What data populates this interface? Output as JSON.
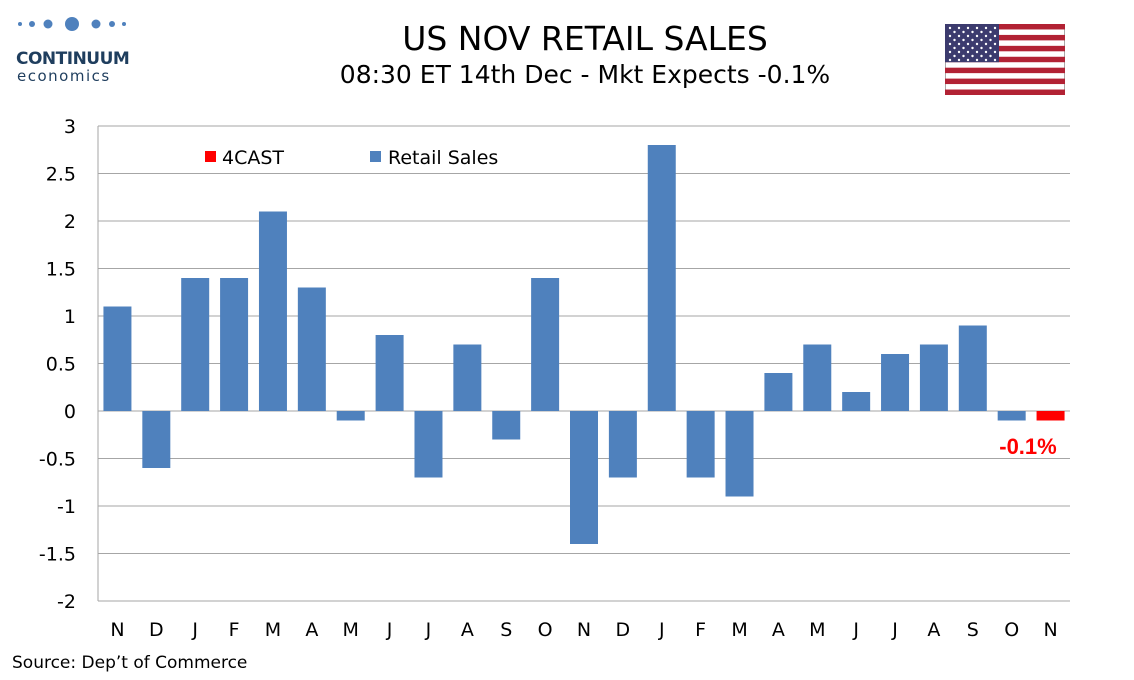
{
  "brand": {
    "name": "CONTINUUM",
    "tagline": "economics",
    "color": "#1f3e5e"
  },
  "header": {
    "title": "US NOV RETAIL SALES",
    "subtitle": "08:30 ET 14th Dec - Mkt Expects -0.1%"
  },
  "flag": {
    "icon": "us-flag-icon"
  },
  "source": "Source: Dep’t of Commerce",
  "chart_data": {
    "type": "bar",
    "title": "",
    "xlabel": "",
    "ylabel": "",
    "categories": [
      "N",
      "D",
      "J",
      "F",
      "M",
      "A",
      "M",
      "J",
      "J",
      "A",
      "S",
      "O",
      "N",
      "D",
      "J",
      "F",
      "M",
      "A",
      "M",
      "J",
      "J",
      "A",
      "S",
      "O",
      "N"
    ],
    "series": [
      {
        "name": "Retail Sales",
        "color": "#4f81bd",
        "values": [
          1.1,
          -0.6,
          1.4,
          1.4,
          2.1,
          1.3,
          -0.1,
          0.8,
          -0.7,
          0.7,
          -0.3,
          1.4,
          -1.4,
          -0.7,
          2.8,
          -0.7,
          -0.9,
          0.4,
          0.7,
          0.2,
          0.6,
          0.7,
          0.9,
          -0.1,
          null
        ]
      },
      {
        "name": "4CAST",
        "color": "#ff0000",
        "values": [
          null,
          null,
          null,
          null,
          null,
          null,
          null,
          null,
          null,
          null,
          null,
          null,
          null,
          null,
          null,
          null,
          null,
          null,
          null,
          null,
          null,
          null,
          null,
          null,
          -0.1
        ]
      }
    ],
    "ylim": [
      -2,
      3
    ],
    "yticks": [
      "3",
      "2.5",
      "2",
      "1.5",
      "1",
      "0.5",
      "0",
      "-0.5",
      "-1",
      "-1.5",
      "-2"
    ],
    "ytick_values": [
      3,
      2.5,
      2,
      1.5,
      1,
      0.5,
      0,
      -0.5,
      -1,
      -1.5,
      -2
    ],
    "grid": true,
    "legend": {
      "placement": "top-left",
      "entries": [
        "4CAST",
        "Retail Sales"
      ]
    },
    "annotation": {
      "text": "-0.1%",
      "color": "#ff0000"
    }
  }
}
